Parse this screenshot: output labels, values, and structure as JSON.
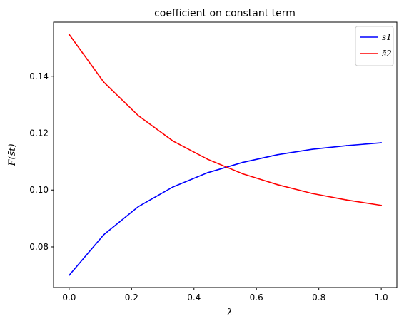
{
  "chart_data": {
    "type": "line",
    "title": "coefficient on constant term",
    "xlabel": "λ",
    "ylabel": "F(s̄t)",
    "xlim": [
      -0.05,
      1.05
    ],
    "ylim": [
      0.0657,
      0.159
    ],
    "xticks": [
      0.0,
      0.2,
      0.4,
      0.6,
      0.8,
      1.0
    ],
    "xtick_labels": [
      "0.0",
      "0.2",
      "0.4",
      "0.6",
      "0.8",
      "1.0"
    ],
    "yticks": [
      0.08,
      0.1,
      0.12,
      0.14
    ],
    "ytick_labels": [
      "0.08",
      "0.10",
      "0.12",
      "0.14"
    ],
    "grid": false,
    "legend_position": "top-right",
    "x": [
      0.0,
      0.111,
      0.222,
      0.333,
      0.444,
      0.556,
      0.667,
      0.778,
      0.889,
      1.0
    ],
    "series": [
      {
        "name": "s̄1",
        "color": "#0000ff",
        "values": [
          0.07,
          0.0843,
          0.0942,
          0.1011,
          0.1061,
          0.1097,
          0.1124,
          0.1143,
          0.1156,
          0.1166
        ]
      },
      {
        "name": "s̄2",
        "color": "#ff0000",
        "values": [
          0.1547,
          0.1379,
          0.1261,
          0.1172,
          0.1108,
          0.1057,
          0.1019,
          0.0988,
          0.0965,
          0.0946
        ]
      }
    ]
  }
}
